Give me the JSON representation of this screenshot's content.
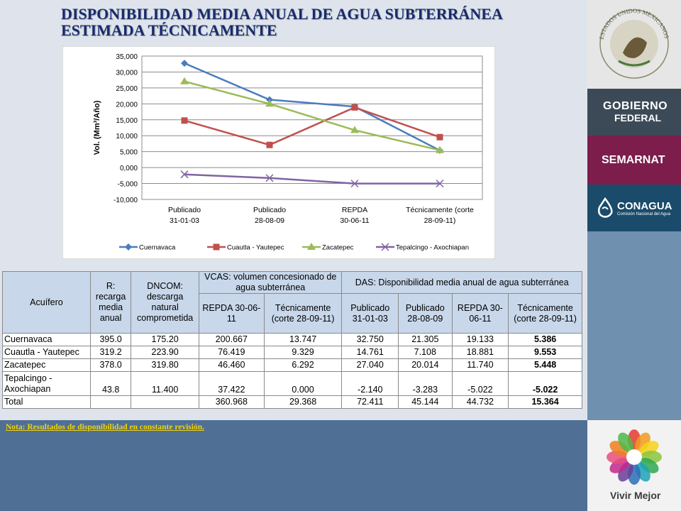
{
  "title": {
    "line1": "DISPONIBILIDAD MEDIA ANUAL DE AGUA SUBTERRÁNEA",
    "line2": "ESTIMADA TÉCNICAMENTE"
  },
  "chart_data": {
    "type": "line",
    "categories": [
      [
        "Publicado",
        "31-01-03"
      ],
      [
        "Publicado",
        "28-08-09"
      ],
      [
        "REPDA",
        "30-06-11"
      ],
      [
        "Técnicamente (corte",
        "28-09-11)"
      ]
    ],
    "ylabel": "Vol. (Mm³/Año)",
    "ylim": [
      -10000,
      35000
    ],
    "ticks": [
      "-10,000",
      "-5,000",
      "0,000",
      "5,000",
      "10,000",
      "15,000",
      "20,000",
      "25,000",
      "30,000",
      "35,000"
    ],
    "grid": true,
    "legend_position": "bottom",
    "series": [
      {
        "name": "Cuernavaca",
        "color": "#4a7dbe",
        "marker": "diamond",
        "values": [
          32750,
          21305,
          19133,
          5386
        ]
      },
      {
        "name": "Cuautla - Yautepec",
        "color": "#c0504d",
        "marker": "square",
        "values": [
          14761,
          7108,
          18881,
          9553
        ]
      },
      {
        "name": "Zacatepec",
        "color": "#9bbb59",
        "marker": "triangle",
        "values": [
          27040,
          20014,
          11740,
          5448
        ]
      },
      {
        "name": "Tepalcingo - Axochiapan",
        "color": "#8064a2",
        "marker": "x",
        "values": [
          -2140,
          -3283,
          -5022,
          -5022
        ]
      }
    ]
  },
  "table": {
    "h_acuifero": "Acuífero",
    "h_r": "R: recarga media anual",
    "h_dncom": "DNCOM: descarga natural comprometida",
    "h_vcas": "VCAS: volumen concesionado de agua subterránea",
    "h_das": "DAS: Disponibilidad media anual de agua subterránea",
    "sub": [
      "REPDA 30-06-11",
      "Técnicamente (corte 28-09-11)",
      "Publicado 31-01-03",
      "Publicado 28-08-09",
      "REPDA 30-06-11",
      "Técnicamente (corte 28-09-11)"
    ],
    "rows": [
      {
        "name": "Cuernavaca",
        "r": "395.0",
        "dncom": "175.20",
        "v1": "200.667",
        "v2": "13.747",
        "d1": "32.750",
        "d2": "21.305",
        "d3": "19.133",
        "d4": "5.386"
      },
      {
        "name": "Cuautla - Yautepec",
        "r": "319.2",
        "dncom": "223.90",
        "v1": "76.419",
        "v2": "9.329",
        "d1": "14.761",
        "d2": "7.108",
        "d3": "18.881",
        "d4": "9.553"
      },
      {
        "name": "Zacatepec",
        "r": "378.0",
        "dncom": "319.80",
        "v1": "46.460",
        "v2": "6.292",
        "d1": "27.040",
        "d2": "20.014",
        "d3": "11.740",
        "d4": "5.448"
      },
      {
        "name": "Tepalcingo - Axochiapan",
        "r": "43.8",
        "dncom": "11.400",
        "v1": "37.422",
        "v2": "0.000",
        "d1": "-2.140",
        "d2": "-3.283",
        "d3": "-5.022",
        "d4": "-5.022"
      }
    ],
    "total": {
      "name": "Total",
      "v1": "360.968",
      "v2": "29.368",
      "d1": "72.411",
      "d2": "45.144",
      "d3": "44.732",
      "d4": "15.364"
    }
  },
  "nota": "Nota:  Resultados de disponibilidad en constante revisión.",
  "sidebar": {
    "seal_text": "ESTADOS UNIDOS MEXICANOS",
    "gobierno_line1": "GOBIERNO",
    "gobierno_line2": "FEDERAL",
    "semarnat": "SEMARNAT",
    "conagua": "CONAGUA",
    "conagua_sub": "Comisión Nacional del Agua",
    "vivir": "Vivir Mejor"
  }
}
